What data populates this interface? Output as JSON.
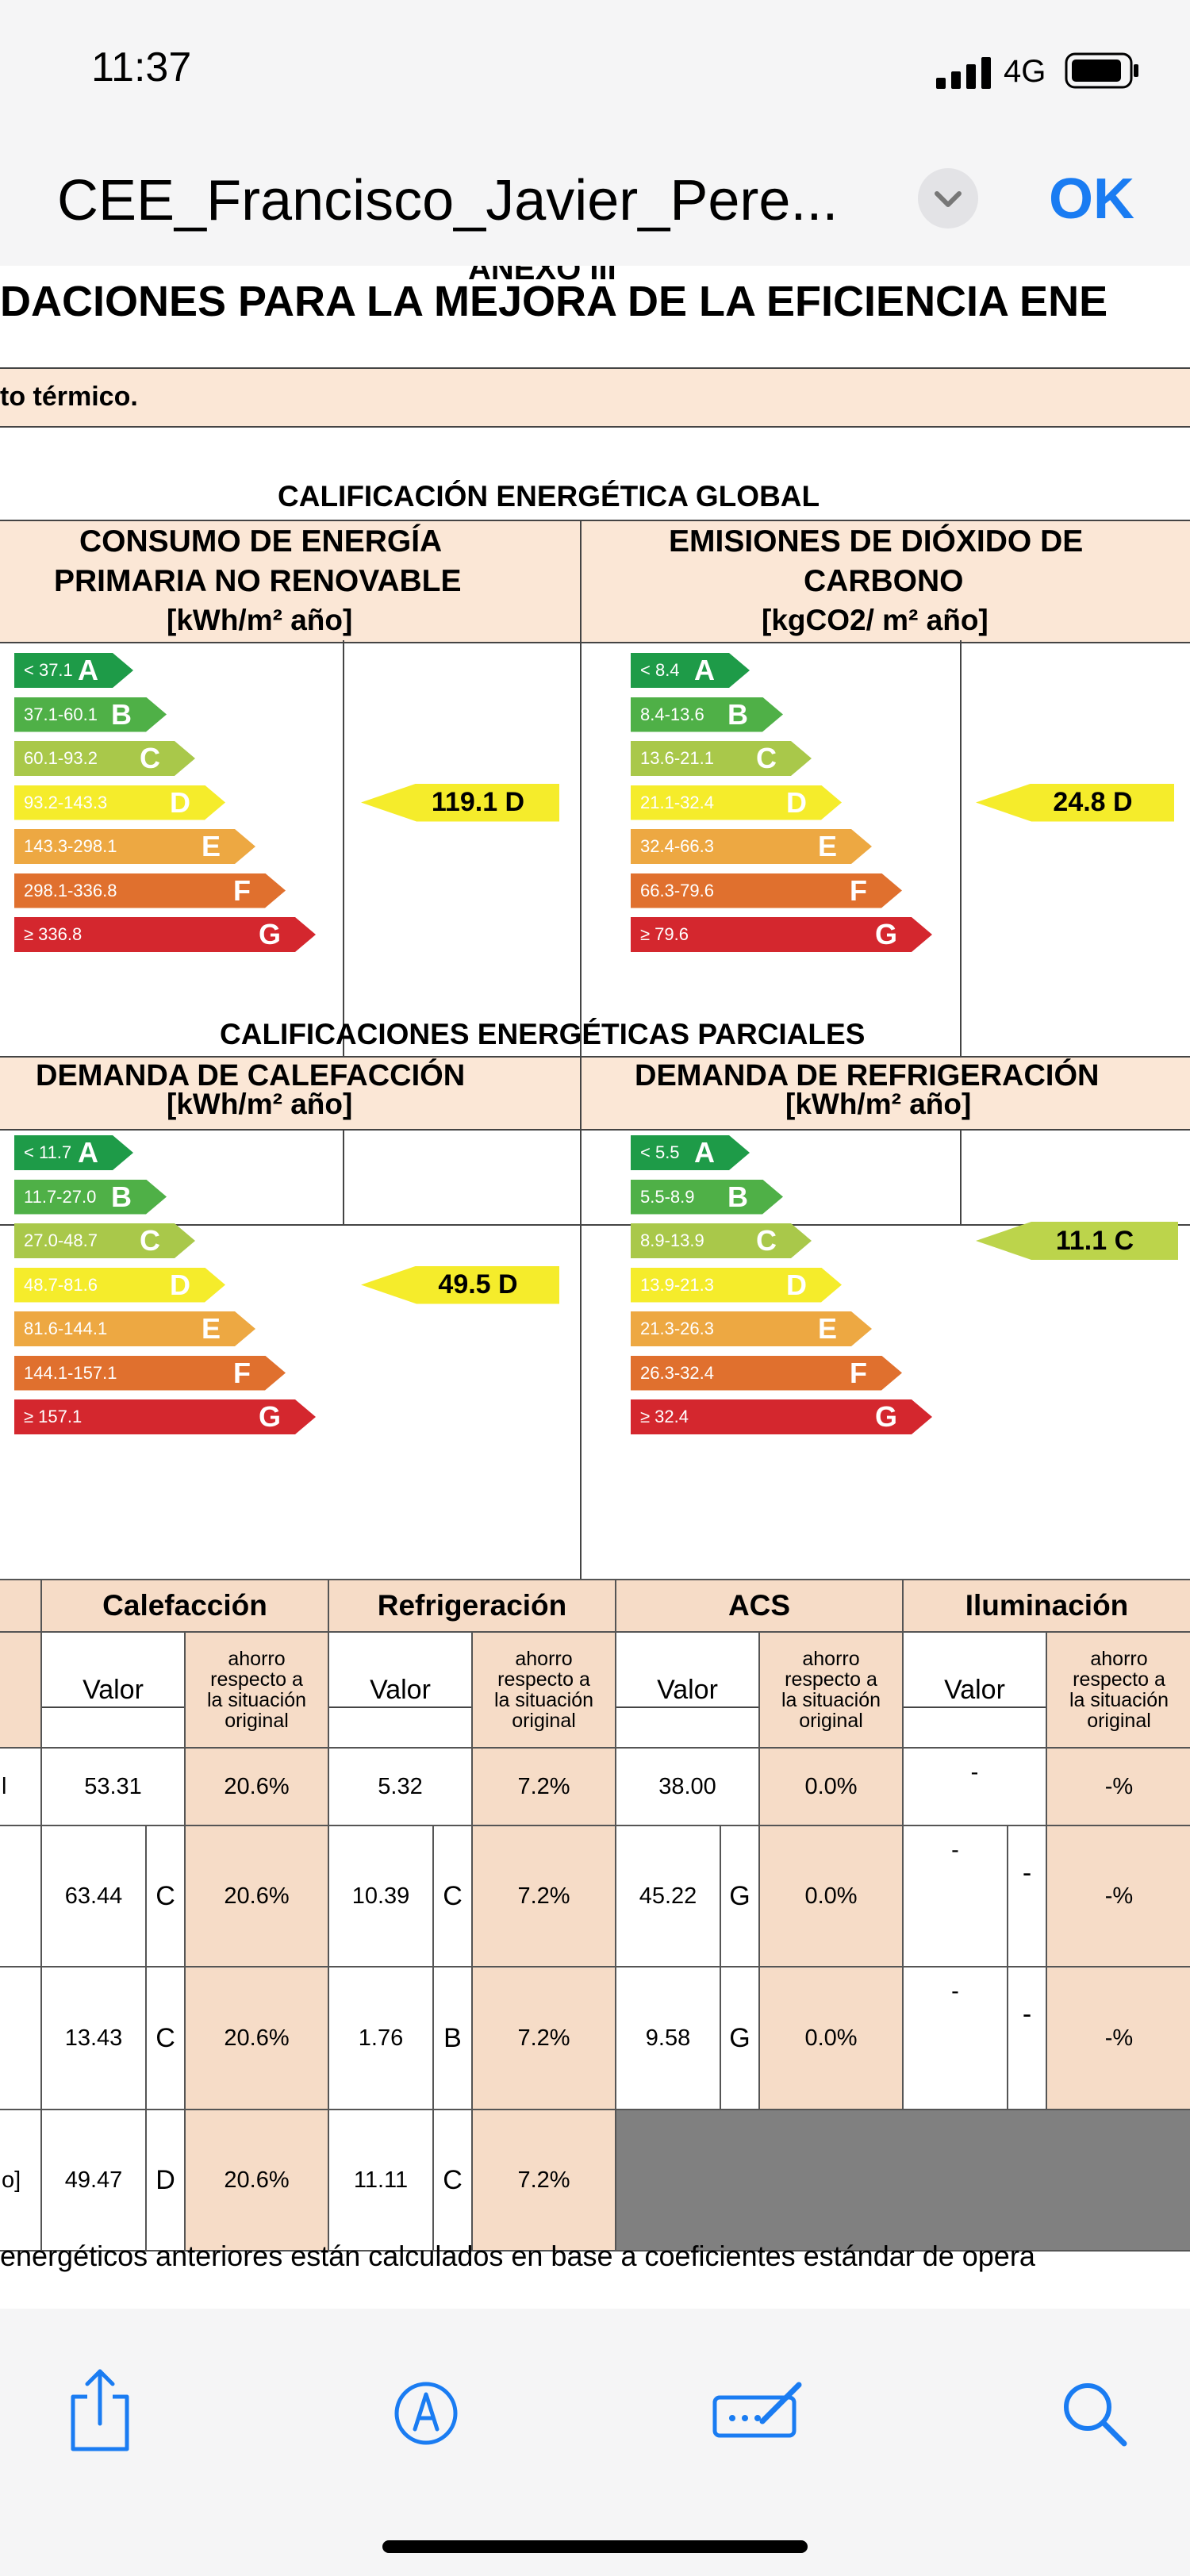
{
  "status_bar": {
    "time": "11:37",
    "network": "4G"
  },
  "header": {
    "doc_title": "CEE_Francisco_Javier_Pere...",
    "ok_label": "OK"
  },
  "doc": {
    "anexo": "ANEXO III",
    "big_title": "DACIONES PARA LA MEJORA DE LA EFICIENCIA ENE",
    "subtitle": "to térmico.",
    "global_title": "CALIFICACIÓN ENERGÉTICA GLOBAL",
    "consumo_h1": "CONSUMO DE ENERGÍA",
    "consumo_h2": "PRIMARIA NO RENOVABLE",
    "consumo_unit": "[kWh/m² año]",
    "emis_h1": "EMISIONES DE DIÓXIDO DE",
    "emis_h2": "CARBONO",
    "emis_unit": "[kgCO2/ m² año]",
    "parciales_title": "CALIFICACIONES ENERGÉTICAS PARCIALES",
    "calef_h": "DEMANDA DE CALEFACCIÓN",
    "calef_unit": "[kWh/m² año]",
    "refri_h": "DEMANDA DE REFRIGERACIÓN",
    "refri_unit": "[kWh/m² año]",
    "footer_text": "energéticos anteriores están calculados en base a coeficientes estándar de opera"
  },
  "scales": {
    "consumo": {
      "ranges": [
        "< 37.1",
        "37.1-60.1",
        "60.1-93.2",
        "93.2-143.3",
        "143.3-298.1",
        "298.1-336.8",
        "≥ 336.8"
      ],
      "value_label": "119.1 D",
      "rating_index": 3
    },
    "emisiones": {
      "ranges": [
        "< 8.4",
        "8.4-13.6",
        "13.6-21.1",
        "21.1-32.4",
        "32.4-66.3",
        "66.3-79.6",
        "≥ 79.6"
      ],
      "value_label": "24.8 D",
      "rating_index": 3
    },
    "calefaccion": {
      "ranges": [
        "< 11.7",
        "11.7-27.0",
        "27.0-48.7",
        "48.7-81.6",
        "81.6-144.1",
        "144.1-157.1",
        "≥ 157.1"
      ],
      "value_label": "49.5 D",
      "rating_index": 3
    },
    "refrigeracion": {
      "ranges": [
        "< 5.5",
        "5.5-8.9",
        "8.9-13.9",
        "13.9-21.3",
        "21.3-26.3",
        "26.3-32.4",
        "≥ 32.4"
      ],
      "value_label": "11.1 C",
      "rating_index": 2
    }
  },
  "letters": [
    "A",
    "B",
    "C",
    "D",
    "E",
    "F",
    "G"
  ],
  "colors": {
    "A": "#1e9b48",
    "B": "#4fb047",
    "C": "#a9c84a",
    "D": "#f5ec2b",
    "E": "#eda842",
    "F": "#e0702e",
    "G": "#d4272e",
    "peach": "#f6dcc7",
    "gray": "#808080",
    "blue": "#1a7cf2"
  },
  "table": {
    "groups": [
      "Calefacción",
      "Refrigeración",
      "ACS",
      "Iluminación"
    ],
    "valor_label": "Valor",
    "ahorro_label": "ahorro respecto a la situación original",
    "row_labels": [
      "l",
      "",
      "",
      "o]"
    ],
    "rows": [
      [
        [
          "53.31",
          "",
          "20.6%"
        ],
        [
          "5.32",
          "",
          "7.2%"
        ],
        [
          "38.00",
          "",
          "0.0%"
        ],
        [
          "-",
          "",
          "-%"
        ]
      ],
      [
        [
          "63.44",
          "C",
          "20.6%"
        ],
        [
          "10.39",
          "C",
          "7.2%"
        ],
        [
          "45.22",
          "G",
          "0.0%"
        ],
        [
          "-",
          "-",
          "-%"
        ]
      ],
      [
        [
          "13.43",
          "C",
          "20.6%"
        ],
        [
          "1.76",
          "B",
          "7.2%"
        ],
        [
          "9.58",
          "G",
          "0.0%"
        ],
        [
          "-",
          "-",
          "-%"
        ]
      ],
      [
        [
          "49.47",
          "D",
          "20.6%"
        ],
        [
          "11.11",
          "C",
          "7.2%"
        ]
      ]
    ]
  },
  "toolbar": {
    "icons": [
      "share-icon",
      "markup-icon",
      "signature-icon",
      "search-icon"
    ]
  }
}
